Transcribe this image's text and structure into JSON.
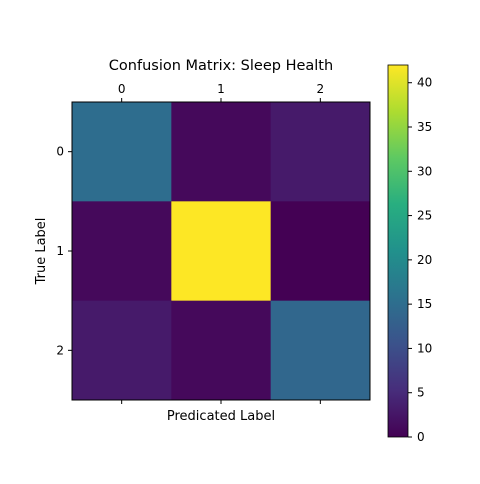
{
  "chart_data": {
    "type": "heatmap",
    "title": "Confusion Matrix: Sleep Health",
    "xlabel": "Predicated Label",
    "ylabel": "True Label",
    "x_categories": [
      "0",
      "1",
      "2"
    ],
    "y_categories": [
      "0",
      "1",
      "2"
    ],
    "values": [
      [
        15,
        1,
        3
      ],
      [
        1,
        42,
        0
      ],
      [
        3,
        1,
        14
      ]
    ],
    "colormap": "viridis",
    "vmin": 0,
    "vmax": 42,
    "colorbar_ticks": [
      "0",
      "5",
      "10",
      "15",
      "20",
      "25",
      "30",
      "35",
      "40"
    ],
    "x_axis_ticks_position": "top",
    "grid": false,
    "colorbar_position": "right"
  }
}
